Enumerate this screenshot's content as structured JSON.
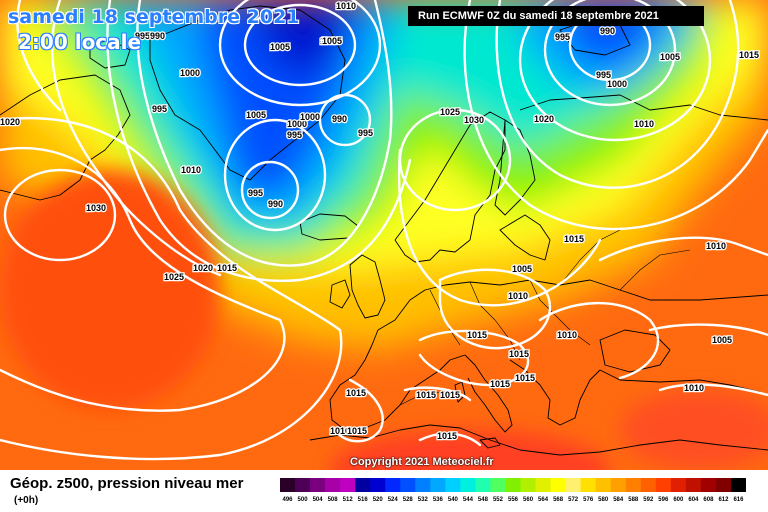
{
  "header": {
    "title": "samedi 18 septembre 2021",
    "local_time": "2:00 locale",
    "run_info": "Run ECMWF 0Z du samedi 18 septembre 2021"
  },
  "map": {
    "copyright": "Copyright 2021 Meteociel.fr",
    "isobar_labels": [
      "995",
      "990",
      "1010",
      "1005",
      "1010",
      "1000",
      "995",
      "990",
      "1005",
      "1000",
      "995",
      "1005",
      "1000",
      "990",
      "995",
      "1010",
      "995",
      "990",
      "1030",
      "1025",
      "1020",
      "1015",
      "1025",
      "1030",
      "1020",
      "1010",
      "1015",
      "1010",
      "1005",
      "1010",
      "1015",
      "1015",
      "1010",
      "1005",
      "1015",
      "1015",
      "1010",
      "1015",
      "1015",
      "1015",
      "1010",
      "1015",
      "1015",
      "990",
      "995",
      "995",
      "1000",
      "1005",
      "1015",
      "1020"
    ]
  },
  "legend": {
    "title": "Géop. z500, pression niveau mer",
    "subtitle": "(+0h)",
    "scale_values": [
      "496",
      "500",
      "504",
      "508",
      "512",
      "516",
      "520",
      "524",
      "528",
      "532",
      "536",
      "540",
      "544",
      "548",
      "552",
      "556",
      "560",
      "564",
      "568",
      "572",
      "576",
      "580",
      "584",
      "588",
      "592",
      "596",
      "600",
      "604",
      "608",
      "612",
      "616"
    ],
    "scale_colors": [
      "#2b0028",
      "#4d0055",
      "#7a0080",
      "#a800a8",
      "#c000c0",
      "#0000a0",
      "#0000d0",
      "#0028ff",
      "#0050ff",
      "#0080ff",
      "#00a8ff",
      "#00d0ff",
      "#00f0e0",
      "#20ffb0",
      "#50ff60",
      "#80f000",
      "#b0f000",
      "#e0f000",
      "#ffff00",
      "#fff070",
      "#ffe000",
      "#ffc000",
      "#ffa000",
      "#ff8000",
      "#ff6000",
      "#ff4000",
      "#e02000",
      "#c01000",
      "#a00000",
      "#800000",
      "#000000"
    ]
  }
}
